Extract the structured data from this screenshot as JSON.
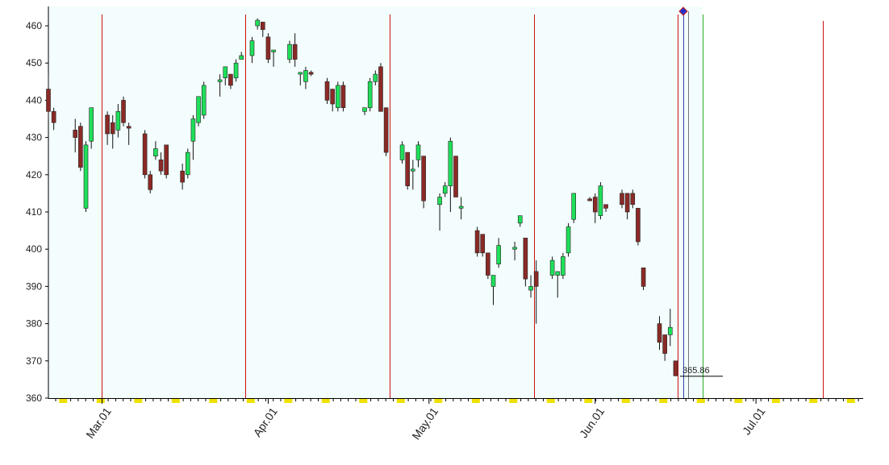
{
  "chart_data": {
    "type": "candlestick",
    "x": [
      0,
      1,
      5,
      6,
      7,
      8,
      11,
      12,
      13,
      14,
      15,
      18,
      19,
      20,
      21,
      22,
      25,
      26,
      27,
      28,
      29,
      32,
      33,
      34,
      35,
      36,
      38,
      39,
      40,
      41,
      42,
      45,
      46,
      47,
      48,
      49,
      52,
      53,
      54,
      55,
      59,
      60,
      61,
      62,
      63,
      66,
      67,
      68,
      69,
      70,
      73,
      74,
      75,
      76,
      77,
      80,
      81,
      82,
      83,
      84,
      87,
      88,
      89,
      90,
      91,
      94,
      95,
      96,
      97,
      98,
      101,
      102,
      103,
      104,
      107,
      108,
      109,
      110,
      111,
      114,
      115,
      116,
      117
    ],
    "open": [
      443,
      437,
      432,
      433,
      411,
      429,
      436,
      434,
      432,
      440,
      433,
      431,
      420,
      425,
      424,
      428,
      421,
      420,
      429,
      434,
      436,
      445,
      446,
      447,
      446,
      451,
      452,
      460,
      461,
      457,
      453,
      451,
      455,
      447,
      445,
      447.5,
      445,
      443,
      438,
      444,
      437,
      438,
      445,
      449,
      438,
      424,
      426,
      421,
      424,
      425,
      412,
      415,
      417,
      425,
      411,
      405,
      404,
      399,
      390,
      396,
      400,
      407,
      403,
      389,
      394,
      393,
      393,
      393,
      399,
      408,
      413.5,
      414,
      409,
      412,
      415,
      415,
      415,
      411,
      395,
      380,
      377,
      377,
      370
    ],
    "high": [
      447,
      438,
      435,
      434,
      429,
      438,
      437,
      436,
      439,
      441,
      434,
      432,
      421,
      429,
      426,
      428,
      423,
      427,
      436,
      441,
      445,
      447,
      449,
      447,
      451,
      453,
      457,
      462,
      461,
      458,
      453,
      456,
      458,
      447,
      449,
      448,
      446,
      443,
      445,
      445,
      438,
      446,
      448,
      450,
      438,
      429,
      426,
      424,
      429,
      425,
      415,
      418,
      430,
      425,
      414,
      406,
      404,
      399,
      393,
      403,
      402,
      409,
      403,
      393,
      397,
      398,
      394,
      399,
      407,
      415,
      414,
      415,
      418,
      412,
      416,
      415,
      416,
      411,
      395,
      382,
      377,
      384,
      370
    ],
    "low": [
      435,
      432,
      426,
      421,
      410,
      427,
      428,
      427,
      430,
      433,
      428,
      419,
      415,
      424,
      420,
      419,
      416,
      419,
      424,
      433,
      435,
      441,
      444,
      443,
      445,
      451,
      450,
      459,
      457,
      450,
      449,
      450,
      449,
      444,
      443,
      446.5,
      439,
      437,
      437,
      437,
      436,
      437,
      444,
      437,
      425,
      423,
      416,
      416,
      422,
      411,
      405,
      414,
      410,
      414,
      408,
      398,
      398,
      392,
      385,
      395,
      397,
      406,
      390,
      387,
      380,
      392,
      387,
      392,
      398,
      407,
      413,
      407,
      408,
      410,
      411,
      408,
      411,
      401,
      389,
      373,
      370,
      374,
      365.86
    ],
    "close": [
      437,
      434,
      430,
      422,
      428,
      438,
      431,
      431,
      437,
      434,
      432.5,
      420,
      416,
      427,
      421,
      420,
      418,
      426,
      435,
      441,
      444,
      445.5,
      449,
      444,
      450,
      452,
      456,
      461.5,
      459,
      451,
      453.5,
      455,
      451,
      447.5,
      448,
      447,
      440,
      439,
      444,
      438,
      438,
      445,
      447,
      437,
      426,
      428,
      417,
      421.5,
      428,
      413,
      414,
      417,
      429,
      414,
      411.5,
      399,
      399,
      393,
      393,
      401,
      400.5,
      409,
      392,
      390,
      390,
      397,
      394,
      398,
      406,
      415,
      413,
      410,
      417,
      411,
      412,
      410,
      412,
      402,
      390,
      375,
      372,
      379,
      366
    ],
    "up_color": "#1fe05a",
    "down_color": "#8b2a26",
    "xlim": [
      0,
      152
    ],
    "xticks": [
      {
        "value": 10,
        "label": "Mar.01"
      },
      {
        "value": 41,
        "label": "Apr.01"
      },
      {
        "value": 71,
        "label": "May.01"
      },
      {
        "value": 102,
        "label": "Jun.01"
      },
      {
        "value": 132,
        "label": "Jul.01"
      }
    ],
    "ylim": [
      360,
      465.2
    ],
    "yticks": [
      360,
      370,
      380,
      390,
      400,
      410,
      420,
      430,
      440,
      450,
      460
    ],
    "last_price": 365.86
  }
}
